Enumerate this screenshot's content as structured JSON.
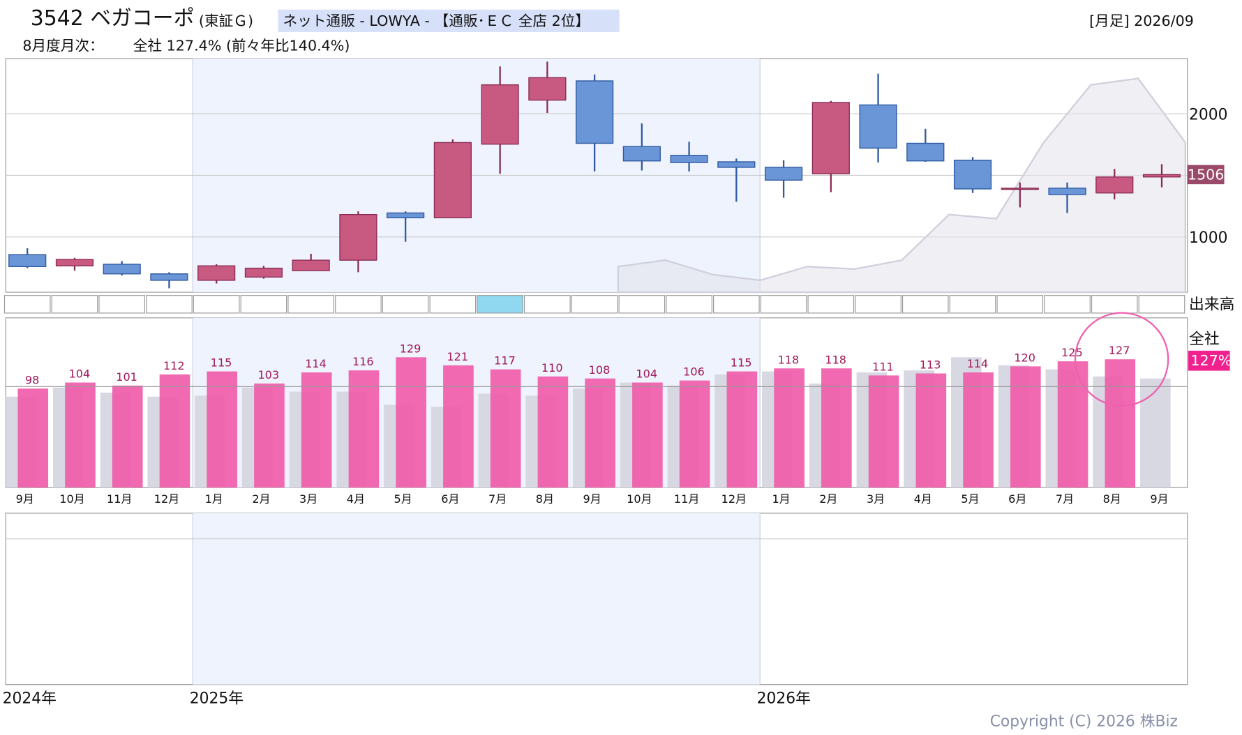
{
  "header": {
    "code_name": "3542 ベガコーポ",
    "market": "(東証Ｇ)",
    "sector": "ネット通販 - LOWYA - 【通販･ＥＣ 全店 2位】",
    "period": "[月足] 2026/09",
    "monthly_label": "8月度月次：",
    "monthly_value": "全社 127.4% (前々年比140.4%)",
    "copyright": "Copyright (C) 2026 株Biz",
    "years": [
      "2024年",
      "2025年",
      "2026年"
    ]
  },
  "chart_data": [
    {
      "type": "candlestick",
      "categories": [
        "9月",
        "10月",
        "11月",
        "12月",
        "1月",
        "2月",
        "3月",
        "4月",
        "5月",
        "6月",
        "7月",
        "8月",
        "9月",
        "10月",
        "11月",
        "12月",
        "1月",
        "2月",
        "3月",
        "4月",
        "5月",
        "6月",
        "7月",
        "8月",
        "9月"
      ],
      "open": [
        857,
        766,
        779,
        701,
        649,
        675,
        727,
        812,
        1195,
        1156,
        1753,
        2110,
        2266,
        1734,
        1662,
        1610,
        1565,
        1513,
        2071,
        1760,
        1623,
        1390,
        1396,
        1357,
        1487
      ],
      "high": [
        909,
        831,
        805,
        714,
        779,
        766,
        864,
        1208,
        1208,
        1792,
        2383,
        2422,
        2318,
        1922,
        1773,
        1636,
        1623,
        2104,
        2325,
        1877,
        1649,
        1442,
        1442,
        1552,
        1591
      ],
      "low": [
        747,
        727,
        688,
        584,
        623,
        662,
        727,
        714,
        961,
        1156,
        1513,
        2006,
        1532,
        1539,
        1532,
        1286,
        1318,
        1364,
        1604,
        1610,
        1357,
        1240,
        1195,
        1305,
        1403
      ],
      "close": [
        760,
        818,
        701,
        649,
        766,
        747,
        812,
        1182,
        1156,
        1766,
        2234,
        2292,
        1760,
        1617,
        1604,
        1565,
        1461,
        2091,
        1721,
        1617,
        1390,
        1396,
        1344,
        1487,
        1506
      ],
      "up_color": "#c85a82",
      "down_color": "#6a96d8",
      "area": {
        "color": "#e4e4ec",
        "values": [
          null,
          null,
          null,
          null,
          null,
          null,
          null,
          null,
          null,
          null,
          null,
          null,
          760,
          812,
          695,
          649,
          760,
          740,
          812,
          1182,
          1149,
          1766,
          2234,
          2286,
          1766
        ]
      },
      "ylim": [
        552,
        2448
      ],
      "yticks": [
        1000,
        2000
      ],
      "grid_lines": [
        1000,
        1500,
        2000
      ],
      "volume_label": "出来高"
    },
    {
      "type": "bar",
      "title": "全社",
      "current_label": "127%",
      "series": [
        {
          "color": "#d8d8e2",
          "values": [
            90,
            99,
            94,
            90,
            91,
            99,
            95,
            95,
            82,
            80,
            93,
            91,
            98,
            104,
            101,
            112,
            115,
            103,
            114,
            116,
            129,
            121,
            117,
            110,
            108
          ]
        },
        {
          "color": "#f05aa8",
          "values": [
            98,
            104,
            101,
            112,
            115,
            103,
            114,
            116,
            129,
            121,
            117,
            110,
            108,
            104,
            106,
            115,
            118,
            118,
            111,
            113,
            114,
            120,
            125,
            127,
            null
          ]
        }
      ],
      "ylim": [
        0,
        168
      ],
      "grid_lines": [
        100
      ]
    }
  ]
}
